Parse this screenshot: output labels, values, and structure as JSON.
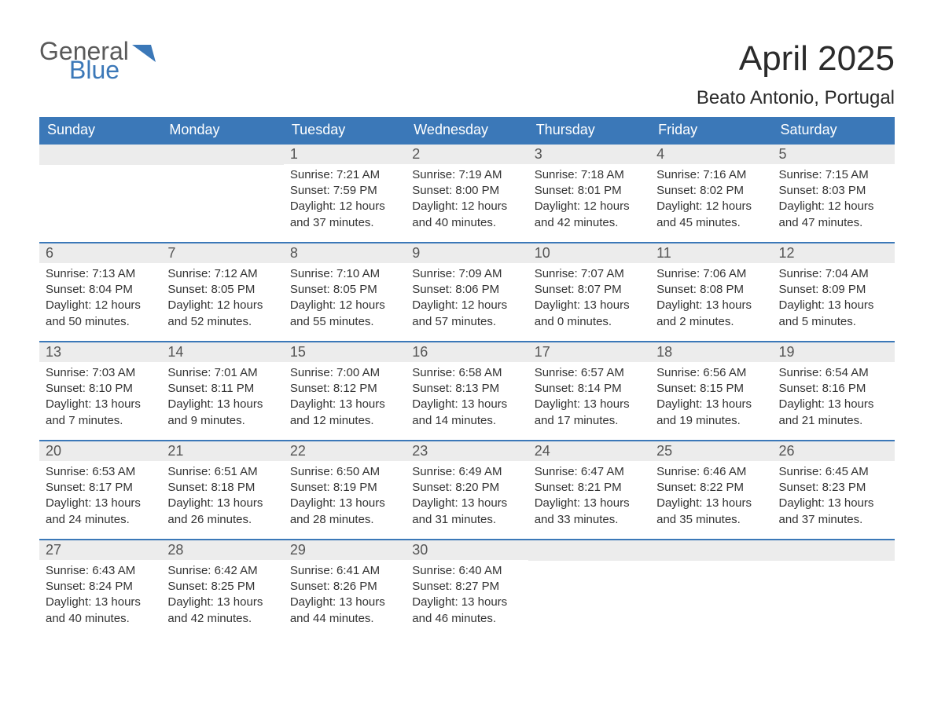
{
  "logo": {
    "text1": "General",
    "text2": "Blue"
  },
  "title": "April 2025",
  "subtitle": "Beato Antonio, Portugal",
  "colors": {
    "header_bg": "#3b78b8",
    "header_text": "#ffffff",
    "daynum_bg": "#ececec",
    "daynum_text": "#555555",
    "body_text": "#333333",
    "row_divider": "#3b78b8",
    "logo_gray": "#5a5a5a",
    "logo_blue": "#3b78b8",
    "page_bg": "#ffffff"
  },
  "weekdays": [
    "Sunday",
    "Monday",
    "Tuesday",
    "Wednesday",
    "Thursday",
    "Friday",
    "Saturday"
  ],
  "weeks": [
    [
      null,
      null,
      {
        "n": "1",
        "sr": "7:21 AM",
        "ss": "7:59 PM",
        "dl": "12 hours and 37 minutes."
      },
      {
        "n": "2",
        "sr": "7:19 AM",
        "ss": "8:00 PM",
        "dl": "12 hours and 40 minutes."
      },
      {
        "n": "3",
        "sr": "7:18 AM",
        "ss": "8:01 PM",
        "dl": "12 hours and 42 minutes."
      },
      {
        "n": "4",
        "sr": "7:16 AM",
        "ss": "8:02 PM",
        "dl": "12 hours and 45 minutes."
      },
      {
        "n": "5",
        "sr": "7:15 AM",
        "ss": "8:03 PM",
        "dl": "12 hours and 47 minutes."
      }
    ],
    [
      {
        "n": "6",
        "sr": "7:13 AM",
        "ss": "8:04 PM",
        "dl": "12 hours and 50 minutes."
      },
      {
        "n": "7",
        "sr": "7:12 AM",
        "ss": "8:05 PM",
        "dl": "12 hours and 52 minutes."
      },
      {
        "n": "8",
        "sr": "7:10 AM",
        "ss": "8:05 PM",
        "dl": "12 hours and 55 minutes."
      },
      {
        "n": "9",
        "sr": "7:09 AM",
        "ss": "8:06 PM",
        "dl": "12 hours and 57 minutes."
      },
      {
        "n": "10",
        "sr": "7:07 AM",
        "ss": "8:07 PM",
        "dl": "13 hours and 0 minutes."
      },
      {
        "n": "11",
        "sr": "7:06 AM",
        "ss": "8:08 PM",
        "dl": "13 hours and 2 minutes."
      },
      {
        "n": "12",
        "sr": "7:04 AM",
        "ss": "8:09 PM",
        "dl": "13 hours and 5 minutes."
      }
    ],
    [
      {
        "n": "13",
        "sr": "7:03 AM",
        "ss": "8:10 PM",
        "dl": "13 hours and 7 minutes."
      },
      {
        "n": "14",
        "sr": "7:01 AM",
        "ss": "8:11 PM",
        "dl": "13 hours and 9 minutes."
      },
      {
        "n": "15",
        "sr": "7:00 AM",
        "ss": "8:12 PM",
        "dl": "13 hours and 12 minutes."
      },
      {
        "n": "16",
        "sr": "6:58 AM",
        "ss": "8:13 PM",
        "dl": "13 hours and 14 minutes."
      },
      {
        "n": "17",
        "sr": "6:57 AM",
        "ss": "8:14 PM",
        "dl": "13 hours and 17 minutes."
      },
      {
        "n": "18",
        "sr": "6:56 AM",
        "ss": "8:15 PM",
        "dl": "13 hours and 19 minutes."
      },
      {
        "n": "19",
        "sr": "6:54 AM",
        "ss": "8:16 PM",
        "dl": "13 hours and 21 minutes."
      }
    ],
    [
      {
        "n": "20",
        "sr": "6:53 AM",
        "ss": "8:17 PM",
        "dl": "13 hours and 24 minutes."
      },
      {
        "n": "21",
        "sr": "6:51 AM",
        "ss": "8:18 PM",
        "dl": "13 hours and 26 minutes."
      },
      {
        "n": "22",
        "sr": "6:50 AM",
        "ss": "8:19 PM",
        "dl": "13 hours and 28 minutes."
      },
      {
        "n": "23",
        "sr": "6:49 AM",
        "ss": "8:20 PM",
        "dl": "13 hours and 31 minutes."
      },
      {
        "n": "24",
        "sr": "6:47 AM",
        "ss": "8:21 PM",
        "dl": "13 hours and 33 minutes."
      },
      {
        "n": "25",
        "sr": "6:46 AM",
        "ss": "8:22 PM",
        "dl": "13 hours and 35 minutes."
      },
      {
        "n": "26",
        "sr": "6:45 AM",
        "ss": "8:23 PM",
        "dl": "13 hours and 37 minutes."
      }
    ],
    [
      {
        "n": "27",
        "sr": "6:43 AM",
        "ss": "8:24 PM",
        "dl": "13 hours and 40 minutes."
      },
      {
        "n": "28",
        "sr": "6:42 AM",
        "ss": "8:25 PM",
        "dl": "13 hours and 42 minutes."
      },
      {
        "n": "29",
        "sr": "6:41 AM",
        "ss": "8:26 PM",
        "dl": "13 hours and 44 minutes."
      },
      {
        "n": "30",
        "sr": "6:40 AM",
        "ss": "8:27 PM",
        "dl": "13 hours and 46 minutes."
      },
      null,
      null,
      null
    ]
  ],
  "labels": {
    "sunrise": "Sunrise: ",
    "sunset": "Sunset: ",
    "daylight": "Daylight: "
  }
}
